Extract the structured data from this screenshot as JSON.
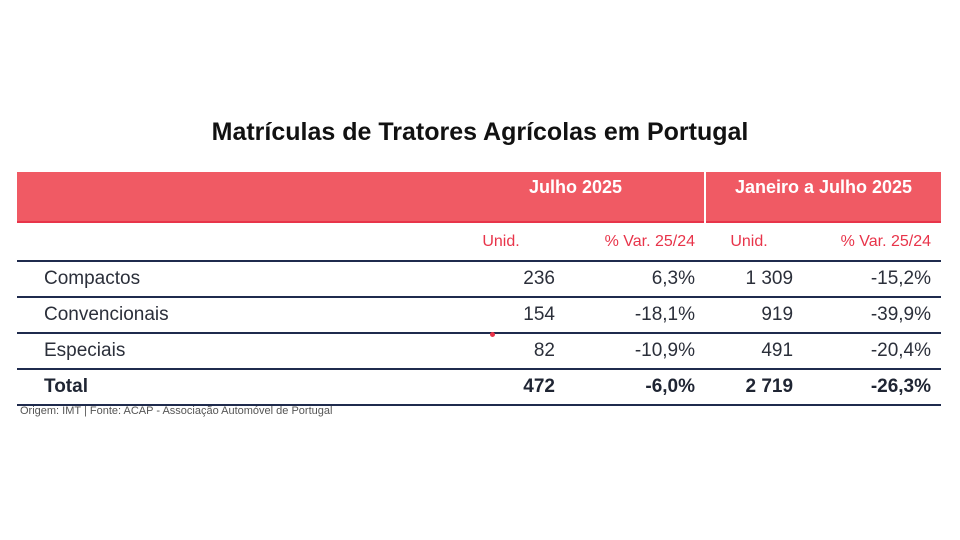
{
  "chart_data": {
    "type": "table",
    "title": "Matrículas de Tratores Agrícolas em Portugal",
    "column_groups": [
      "Julho 2025",
      "Janeiro a Julho 2025"
    ],
    "subheaders": [
      "Unid.",
      "% Var. 25/24",
      "Unid.",
      "% Var. 25/24"
    ],
    "rows": [
      {
        "label": "Compactos",
        "values": [
          "236",
          "6,3%",
          "1 309",
          "-15,2%"
        ]
      },
      {
        "label": "Convencionais",
        "values": [
          "154",
          "-18,1%",
          "919",
          "-39,9%"
        ]
      },
      {
        "label": "Especiais",
        "values": [
          "82",
          "-10,9%",
          "491",
          "-20,4%"
        ]
      }
    ],
    "total": {
      "label": "Total",
      "values": [
        "472",
        "-6,0%",
        "2 719",
        "-26,3%"
      ]
    },
    "source": "Origem: IMT | Fonte: ACAP - Associação Automóvel de Portugal"
  },
  "colors": {
    "header_bg": "#f05a64",
    "subheader_text": "#e8344a",
    "rule": "#1f2b4d"
  }
}
